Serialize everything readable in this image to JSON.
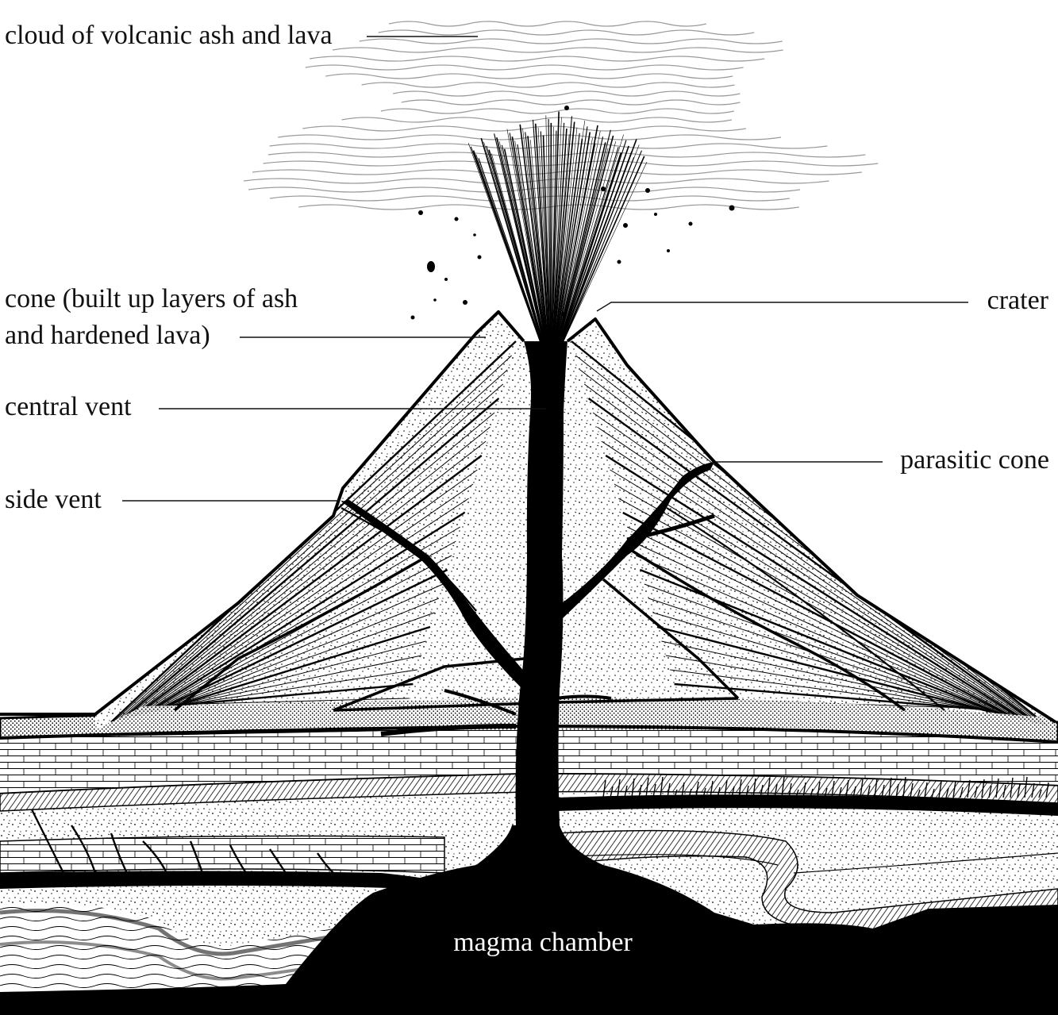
{
  "labels": {
    "cloud": "cloud of volcanic ash and lava",
    "cone_line1": "cone (built up layers of ash",
    "cone_line2": "and hardened lava)",
    "central_vent": "central vent",
    "side_vent": "side vent",
    "crater": "crater",
    "parasitic_cone": "parasitic cone",
    "magma_chamber": "magma chamber"
  },
  "colors": {
    "ink": "#000000",
    "paper": "#ffffff",
    "cloud_line": "#9a9a9a",
    "stipple_band": "#bdbdbd"
  }
}
